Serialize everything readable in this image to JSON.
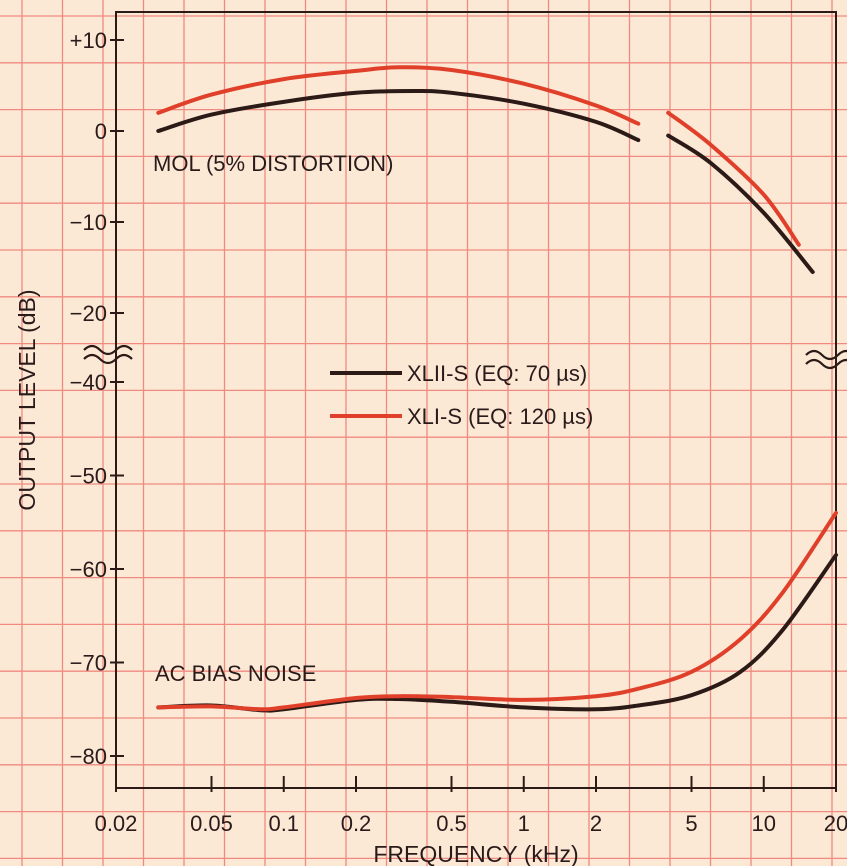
{
  "chart_data": {
    "type": "line",
    "title": "",
    "xlabel": "FREQUENCY (kHz)",
    "ylabel": "OUTPUT LEVEL (dB)",
    "x_scale": "log",
    "xlim": [
      0.02,
      20
    ],
    "y_broken": true,
    "y_ticks": [
      "+10",
      "0",
      "-10",
      "-20",
      "-40",
      "-50",
      "-60",
      "-70",
      "-80"
    ],
    "x_ticks": [
      "0.02",
      "0.05",
      "0.1",
      "0.2",
      "0.5",
      "1",
      "2",
      "5",
      "10",
      "20"
    ],
    "grid": true,
    "legend": {
      "position": "center",
      "entries": [
        {
          "label": "XLII-S (EQ: 70 µs)",
          "color": "#2b1a16"
        },
        {
          "label": "XLI-S (EQ: 120 µs)",
          "color": "#e0402a"
        }
      ]
    },
    "annotations": {
      "mol": "MOL (5% DISTORTION)",
      "noise": "AC BIAS NOISE"
    },
    "series": [
      {
        "name": "XLII-S (EQ: 70 µs)",
        "color": "#2b1a16",
        "mol": [
          [
            0.03,
            0
          ],
          [
            0.05,
            1.8
          ],
          [
            0.1,
            3.2
          ],
          [
            0.2,
            4.2
          ],
          [
            0.35,
            4.4
          ],
          [
            0.5,
            4.2
          ],
          [
            1,
            3.0
          ],
          [
            2,
            1.0
          ],
          [
            3,
            -1.0
          ]
        ],
        "mol_hf": [
          [
            4,
            -0.5
          ],
          [
            6,
            -3.5
          ],
          [
            10,
            -9
          ],
          [
            16,
            -15.5
          ]
        ],
        "noise": [
          [
            0.03,
            -74.8
          ],
          [
            0.05,
            -74.6
          ],
          [
            0.08,
            -75.1
          ],
          [
            0.1,
            -75.0
          ],
          [
            0.2,
            -74.0
          ],
          [
            0.3,
            -73.9
          ],
          [
            0.5,
            -74.2
          ],
          [
            1,
            -74.8
          ],
          [
            2,
            -75.0
          ],
          [
            3,
            -74.6
          ],
          [
            5,
            -73.5
          ],
          [
            8,
            -71.0
          ],
          [
            12,
            -66.5
          ],
          [
            20,
            -58.5
          ]
        ]
      },
      {
        "name": "XLI-S (EQ: 120 µs)",
        "color": "#e0402a",
        "mol": [
          [
            0.03,
            2.0
          ],
          [
            0.05,
            4.0
          ],
          [
            0.1,
            5.7
          ],
          [
            0.2,
            6.6
          ],
          [
            0.3,
            7.0
          ],
          [
            0.5,
            6.7
          ],
          [
            1,
            5.2
          ],
          [
            2,
            2.8
          ],
          [
            3,
            0.8
          ]
        ],
        "mol_hf": [
          [
            4,
            2.0
          ],
          [
            6,
            -1.5
          ],
          [
            10,
            -7
          ],
          [
            14,
            -12.5
          ]
        ],
        "noise": [
          [
            0.03,
            -74.8
          ],
          [
            0.05,
            -74.7
          ],
          [
            0.08,
            -75.0
          ],
          [
            0.1,
            -74.8
          ],
          [
            0.2,
            -73.8
          ],
          [
            0.3,
            -73.6
          ],
          [
            0.5,
            -73.7
          ],
          [
            1,
            -74.0
          ],
          [
            2,
            -73.6
          ],
          [
            3,
            -72.8
          ],
          [
            5,
            -71.0
          ],
          [
            8,
            -67.5
          ],
          [
            12,
            -62.5
          ],
          [
            20,
            -54.0
          ]
        ]
      }
    ]
  }
}
